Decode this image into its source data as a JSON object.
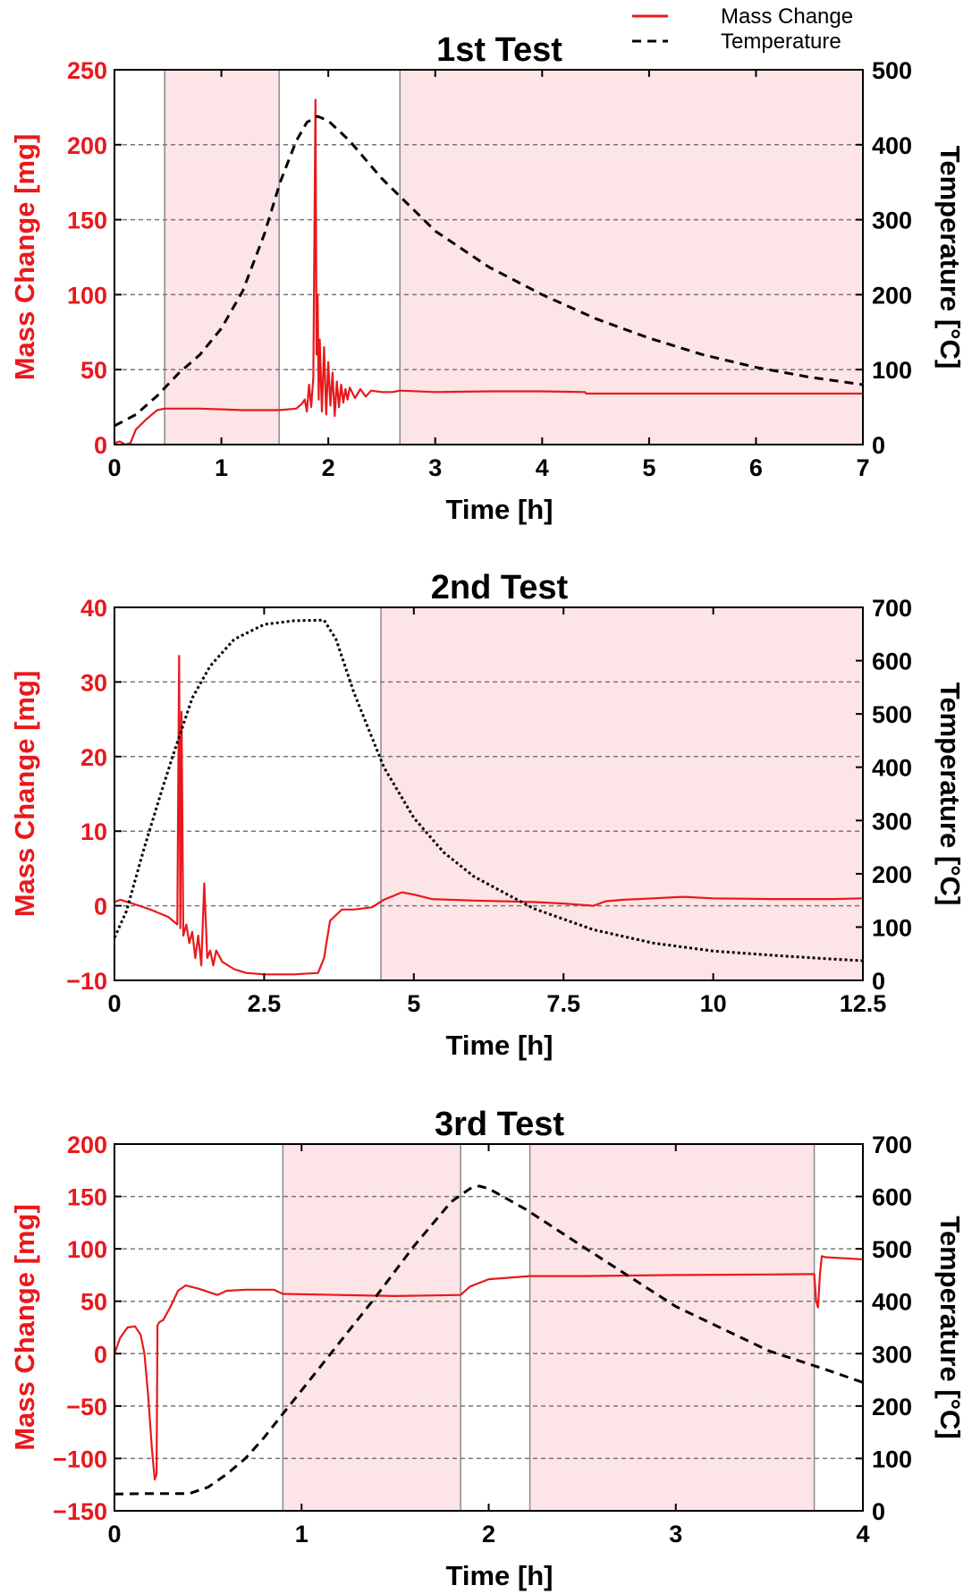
{
  "legend": {
    "mass_label": "Mass Change",
    "temp_label": "Temperature",
    "mass_color": "#e8191c",
    "temp_color": "#000000"
  },
  "colors": {
    "mass": "#e8191c",
    "temp": "#000000",
    "shade": "#fde4e6",
    "grid": "#777777"
  },
  "chart_data": [
    {
      "type": "line",
      "title": "1st Test",
      "xlabel": "Time [h]",
      "ylabel_left": "Mass Change [mg]",
      "ylabel_right": "Temperature [°C]",
      "xlim": [
        0,
        7
      ],
      "ylim_left": [
        0,
        250
      ],
      "ylim_right": [
        0,
        500
      ],
      "xticks": [
        0,
        1,
        2,
        3,
        4,
        5,
        6,
        7
      ],
      "xtick_labels": [
        "0",
        "1",
        "2",
        "3",
        "4",
        "5",
        "6",
        "7"
      ],
      "yticks_left": [
        0,
        50,
        100,
        150,
        200,
        250
      ],
      "yticks_right": [
        0,
        100,
        200,
        300,
        400,
        500
      ],
      "grid": "horizontal-dashed",
      "shaded_x_ranges": [
        [
          0.47,
          1.54
        ],
        [
          2.67,
          7
        ]
      ],
      "series": [
        {
          "name": "Mass Change",
          "axis": "left",
          "style": "solid",
          "x": [
            0,
            0.05,
            0.1,
            0.15,
            0.2,
            0.3,
            0.4,
            0.47,
            0.8,
            1.2,
            1.54,
            1.7,
            1.75,
            1.78,
            1.8,
            1.82,
            1.84,
            1.86,
            1.88,
            1.89,
            1.9,
            1.91,
            1.92,
            1.94,
            1.96,
            1.98,
            2.0,
            2.02,
            2.04,
            2.06,
            2.08,
            2.1,
            2.12,
            2.14,
            2.16,
            2.18,
            2.2,
            2.25,
            2.3,
            2.35,
            2.4,
            2.5,
            2.6,
            2.67,
            3.0,
            3.5,
            4.0,
            4.4,
            4.41,
            5.0,
            6.0,
            7.0
          ],
          "y": [
            1,
            2,
            0,
            1,
            10,
            17,
            23,
            24,
            24,
            23,
            23,
            24,
            27,
            30,
            22,
            40,
            25,
            45,
            230,
            60,
            100,
            30,
            70,
            22,
            65,
            20,
            55,
            26,
            48,
            19,
            42,
            25,
            40,
            28,
            37,
            30,
            38,
            31,
            37,
            32,
            36,
            35,
            35,
            36,
            35,
            35.5,
            35.5,
            35,
            34,
            34,
            34,
            34
          ]
        },
        {
          "name": "Temperature",
          "axis": "right",
          "style": "dashed",
          "x": [
            0,
            0.2,
            0.4,
            0.6,
            0.8,
            1.0,
            1.2,
            1.4,
            1.55,
            1.7,
            1.8,
            1.9,
            2.0,
            2.2,
            2.5,
            3.0,
            3.5,
            4.0,
            4.5,
            5.0,
            5.5,
            6.0,
            6.5,
            7.0
          ],
          "y": [
            25,
            40,
            65,
            95,
            120,
            155,
            205,
            280,
            350,
            405,
            430,
            438,
            432,
            405,
            355,
            285,
            237,
            200,
            168,
            142,
            120,
            103,
            90,
            80
          ]
        }
      ]
    },
    {
      "type": "line",
      "title": "2nd Test",
      "xlabel": "Time [h]",
      "ylabel_left": "Mass Change [mg]",
      "ylabel_right": "Temperature [°C]",
      "xlim": [
        0,
        12.5
      ],
      "ylim_left": [
        -10,
        40
      ],
      "ylim_right": [
        0,
        700
      ],
      "xticks": [
        0,
        2.5,
        5,
        7.5,
        10,
        12.5
      ],
      "xtick_labels": [
        "0",
        "2.5",
        "5",
        "7.5",
        "10",
        "12.5"
      ],
      "yticks_left": [
        -10,
        0,
        10,
        20,
        30,
        40
      ],
      "yticks_left_labels": [
        "−10",
        "0",
        "10",
        "20",
        "30",
        "40"
      ],
      "yticks_right": [
        0,
        100,
        200,
        300,
        400,
        500,
        600,
        700
      ],
      "grid": "horizontal-dashed",
      "shaded_x_ranges": [
        [
          4.45,
          12.5
        ]
      ],
      "series": [
        {
          "name": "Mass Change",
          "axis": "left",
          "style": "solid",
          "x": [
            0,
            0.1,
            0.3,
            0.6,
            0.9,
            1.05,
            1.08,
            1.1,
            1.12,
            1.15,
            1.2,
            1.25,
            1.3,
            1.35,
            1.4,
            1.45,
            1.5,
            1.55,
            1.6,
            1.65,
            1.7,
            1.8,
            2.0,
            2.2,
            2.5,
            3.0,
            3.4,
            3.5,
            3.6,
            3.8,
            4.0,
            4.3,
            4.5,
            4.8,
            5.0,
            5.3,
            6.0,
            7.0,
            7.5,
            8.0,
            8.2,
            8.5,
            9.0,
            9.5,
            10.0,
            11.0,
            12.0,
            12.5
          ],
          "y": [
            0.5,
            0.8,
            0.3,
            -0.5,
            -1.5,
            -2.5,
            33.5,
            -3,
            26,
            -4,
            -2.5,
            -5,
            -3.5,
            -7,
            -4,
            -8,
            3,
            -7,
            -6,
            -8,
            -6,
            -7.5,
            -8.5,
            -9,
            -9.2,
            -9.2,
            -9.0,
            -7,
            -2,
            -0.5,
            -0.5,
            -0.2,
            0.8,
            1.8,
            1.5,
            0.9,
            0.7,
            0.5,
            0.3,
            0,
            0.6,
            0.8,
            1.0,
            1.2,
            1.0,
            0.9,
            0.9,
            1.0
          ]
        },
        {
          "name": "Temperature",
          "axis": "right",
          "style": "dotted",
          "x": [
            0,
            0.2,
            0.5,
            0.8,
            1.0,
            1.3,
            1.6,
            2.0,
            2.5,
            3.0,
            3.5,
            3.7,
            4.0,
            4.5,
            5.0,
            5.5,
            6.0,
            7.0,
            8.0,
            9.0,
            10.0,
            11.0,
            12.0,
            12.5
          ],
          "y": [
            80,
            130,
            250,
            360,
            430,
            530,
            590,
            640,
            668,
            675,
            676,
            640,
            540,
            400,
            305,
            240,
            195,
            135,
            95,
            70,
            55,
            47,
            40,
            37
          ]
        }
      ]
    },
    {
      "type": "line",
      "title": "3rd Test",
      "xlabel": "Time [h]",
      "ylabel_left": "Mass Change [mg]",
      "ylabel_right": "Temperature [°C]",
      "xlim": [
        0,
        4
      ],
      "ylim_left": [
        -150,
        200
      ],
      "ylim_right": [
        0,
        700
      ],
      "xticks": [
        0,
        1,
        2,
        3,
        4
      ],
      "xtick_labels": [
        "0",
        "1",
        "2",
        "3",
        "4"
      ],
      "yticks_left": [
        -150,
        -100,
        -50,
        0,
        50,
        100,
        150,
        200
      ],
      "yticks_left_labels": [
        "−150",
        "−100",
        "−50",
        "0",
        "50",
        "100",
        "150",
        "200"
      ],
      "yticks_right": [
        0,
        100,
        200,
        300,
        400,
        500,
        600,
        700
      ],
      "grid": "horizontal-dashed",
      "shaded_x_ranges": [
        [
          0.9,
          1.85
        ],
        [
          2.22,
          3.74
        ]
      ],
      "series": [
        {
          "name": "Mass Change",
          "axis": "left",
          "style": "solid",
          "x": [
            0,
            0.03,
            0.07,
            0.11,
            0.14,
            0.16,
            0.18,
            0.2,
            0.215,
            0.225,
            0.23,
            0.24,
            0.26,
            0.3,
            0.34,
            0.38,
            0.45,
            0.55,
            0.6,
            0.7,
            0.85,
            0.9,
            1.2,
            1.5,
            1.85,
            1.9,
            2.0,
            2.22,
            2.5,
            3.0,
            3.5,
            3.74,
            3.75,
            3.76,
            3.77,
            3.78,
            3.8,
            3.9,
            4.0
          ],
          "y": [
            0,
            15,
            25,
            26,
            18,
            0,
            -40,
            -90,
            -120,
            -115,
            27,
            30,
            32,
            45,
            60,
            65,
            62,
            56,
            60,
            61,
            61,
            57,
            56,
            55,
            56,
            64,
            71,
            74,
            74,
            75,
            75.5,
            76,
            50,
            44,
            75,
            93,
            92,
            91,
            90
          ]
        },
        {
          "name": "Temperature",
          "axis": "right",
          "style": "dashed",
          "x": [
            0,
            0.2,
            0.4,
            0.5,
            0.6,
            0.7,
            0.8,
            0.9,
            1.0,
            1.2,
            1.4,
            1.6,
            1.8,
            1.9,
            1.95,
            2.0,
            2.2,
            2.5,
            3.0,
            3.5,
            3.8,
            4.0
          ],
          "y": [
            32,
            33,
            33,
            45,
            70,
            100,
            140,
            185,
            230,
            320,
            410,
            505,
            590,
            615,
            620,
            615,
            575,
            505,
            390,
            305,
            270,
            245
          ]
        }
      ]
    }
  ]
}
